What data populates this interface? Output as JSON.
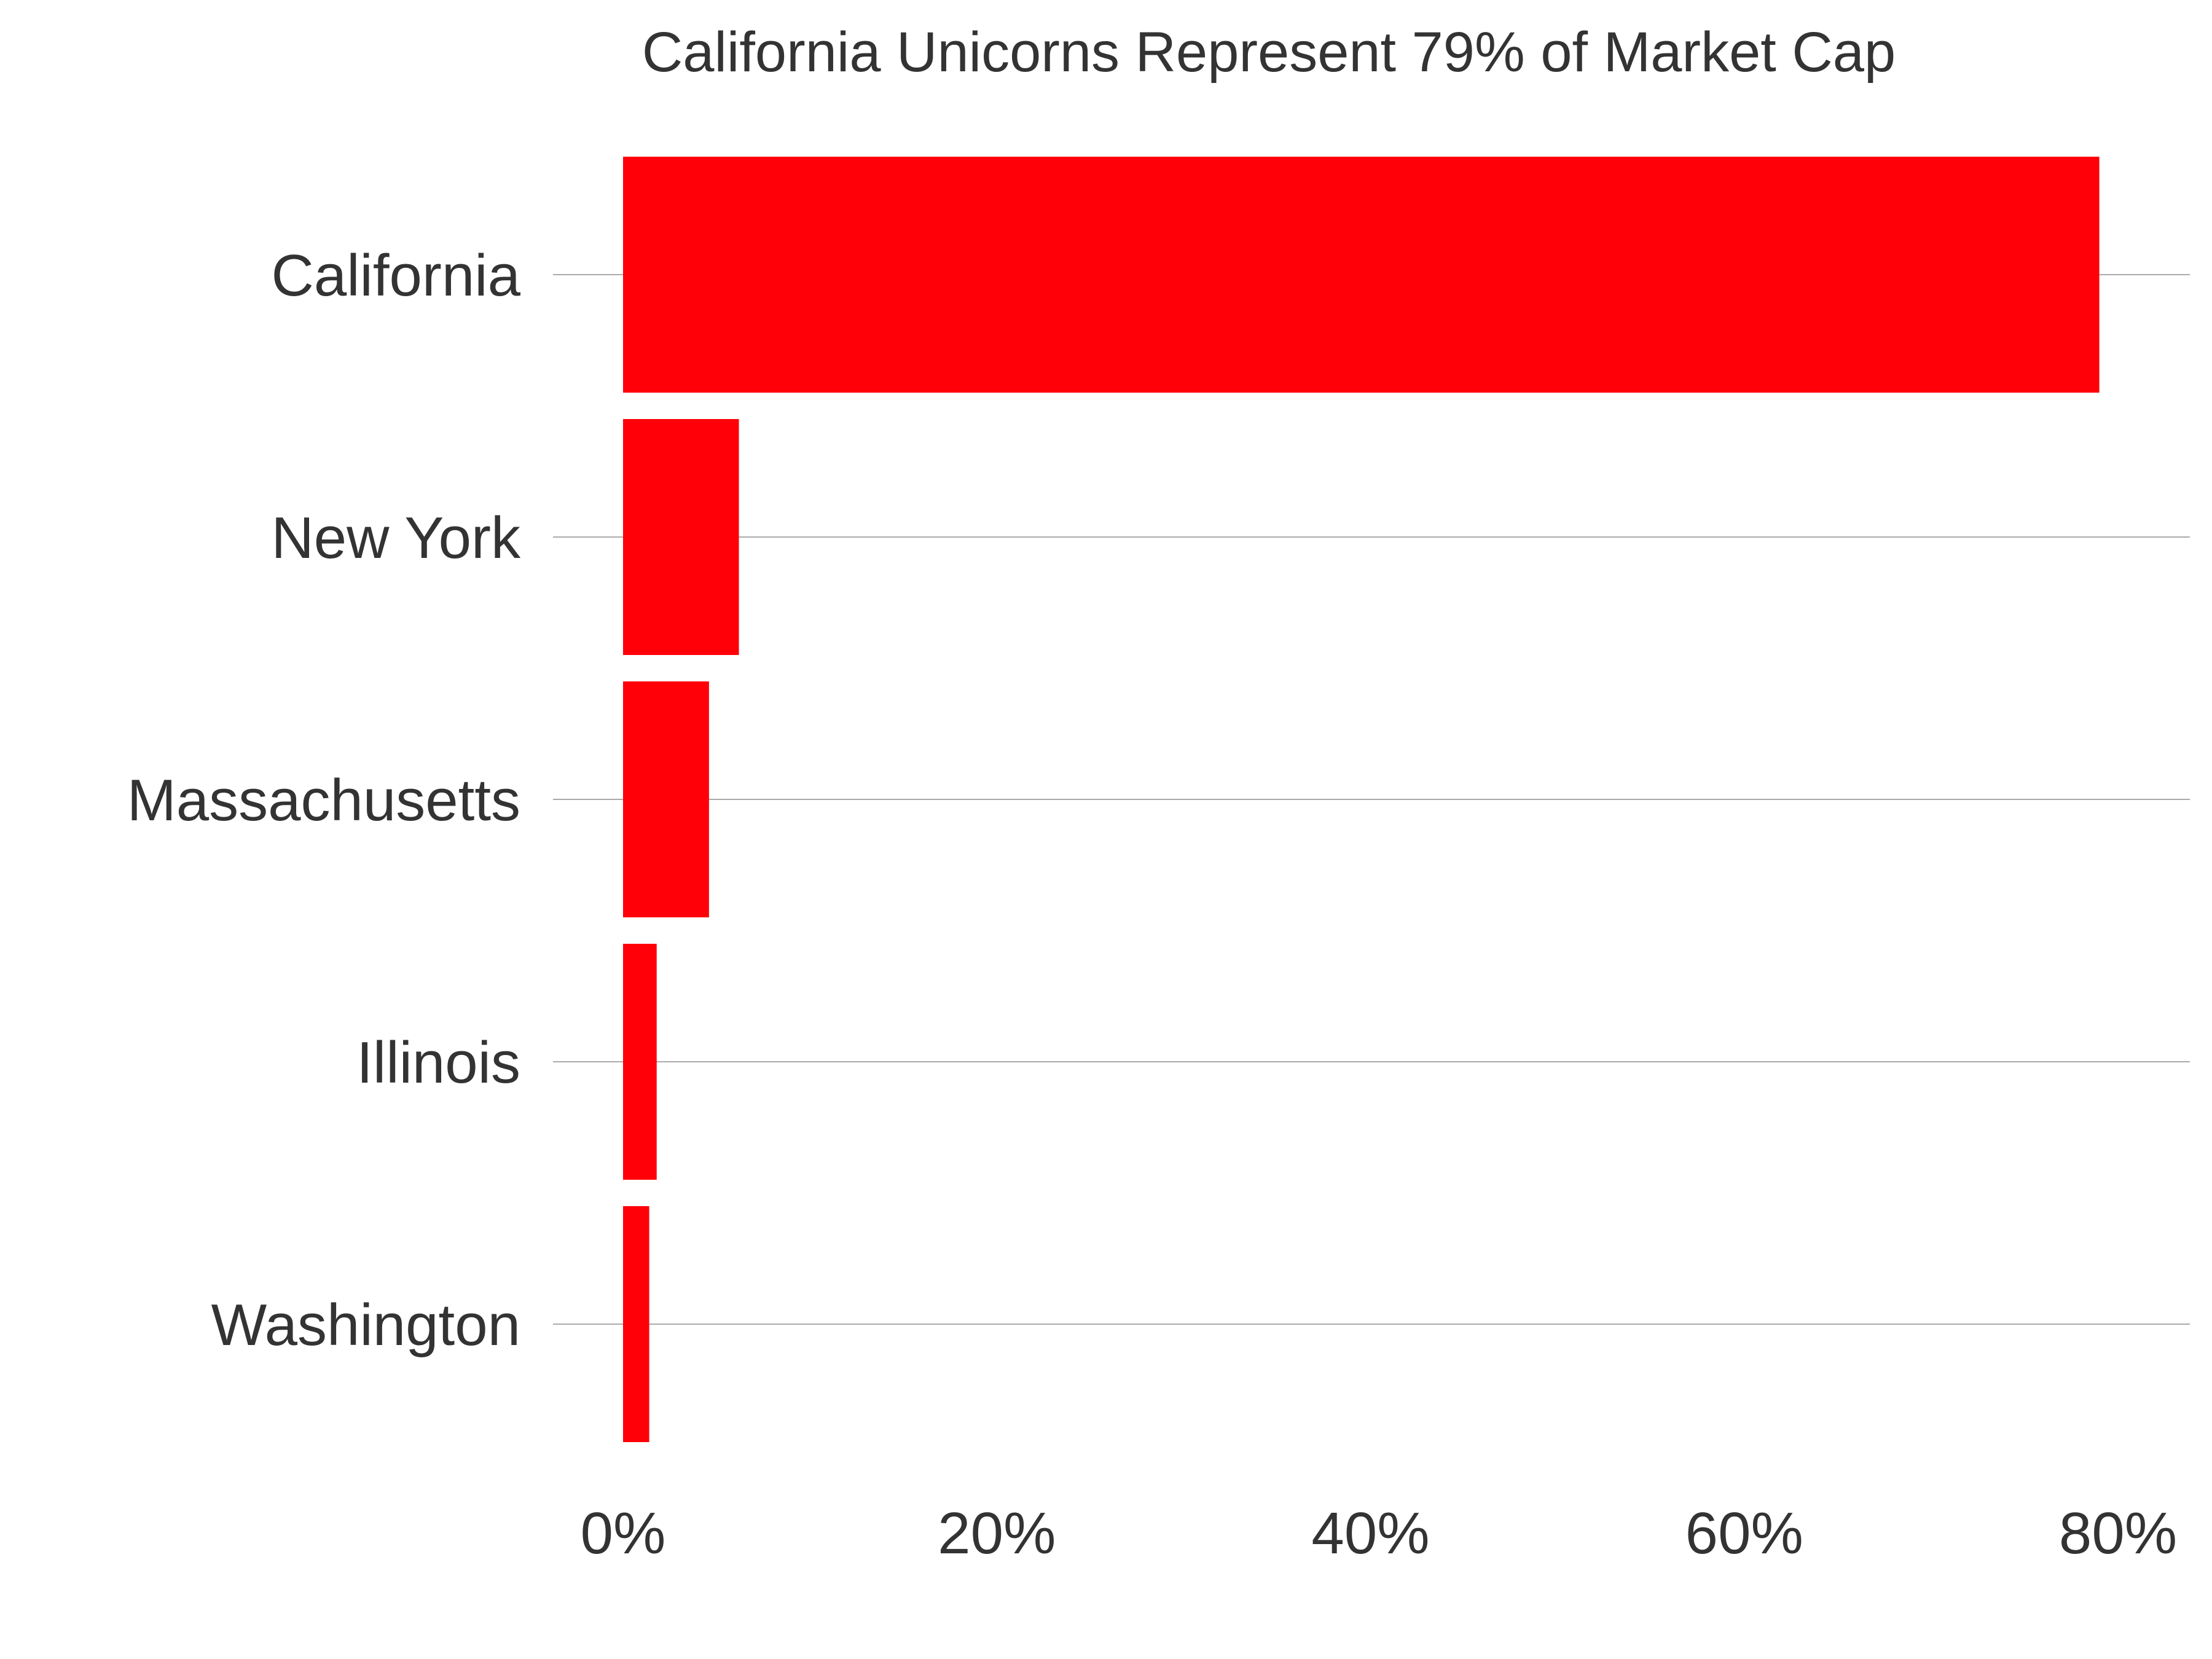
{
  "chart_data": {
    "type": "bar",
    "orientation": "horizontal",
    "title": "California Unicorns Represent 79% of Market Cap",
    "xlabel": "",
    "ylabel": "",
    "categories": [
      "California",
      "New York",
      "Massachusetts",
      "Illinois",
      "Washington"
    ],
    "values": [
      79,
      6.2,
      4.6,
      1.8,
      1.4
    ],
    "value_unit": "%",
    "xlim": [
      0,
      80
    ],
    "xticks": [
      0,
      20,
      40,
      60,
      80
    ],
    "xtick_labels": [
      "0%",
      "20%",
      "40%",
      "60%",
      "80%"
    ],
    "grid": true,
    "grid_axis": "category",
    "legend": "none",
    "colors": {
      "bar": "#ff0008",
      "gridline": "#aaaaaa",
      "text": "#333333",
      "background": "#ffffff"
    }
  }
}
